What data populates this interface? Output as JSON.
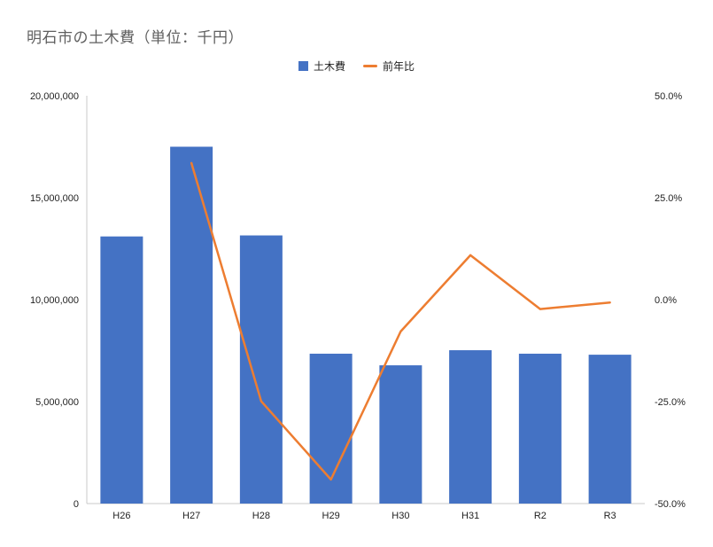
{
  "page": {
    "title": "明石市の土木費（単位：千円）"
  },
  "legend": [
    {
      "label": "土木費",
      "color": "#4472C4"
    },
    {
      "label": "前年比",
      "color": "#ED7D31"
    }
  ],
  "chart_data": {
    "type": "bar+line",
    "title": "明石市の土木費（単位：千円）",
    "categories": [
      "H26",
      "H27",
      "H28",
      "H29",
      "H30",
      "H31",
      "R2",
      "R3"
    ],
    "series": [
      {
        "name": "土木費",
        "type": "bar",
        "axis": "left",
        "color": "#4472C4",
        "values": [
          13100000,
          17500000,
          13150000,
          7350000,
          6780000,
          7520000,
          7350000,
          7300000
        ]
      },
      {
        "name": "前年比",
        "type": "line",
        "axis": "right",
        "color": "#ED7D31",
        "values": [
          null,
          33.5,
          -24.9,
          -44.1,
          -7.8,
          10.9,
          -2.3,
          -0.7
        ]
      }
    ],
    "left_axis": {
      "min": 0,
      "max": 20000000,
      "ticks": [
        0,
        5000000,
        10000000,
        15000000,
        20000000
      ],
      "tick_labels": [
        "0",
        "5,000,000",
        "10,000,000",
        "15,000,000",
        "20,000,000"
      ]
    },
    "right_axis": {
      "min": -50,
      "max": 50,
      "ticks": [
        -50,
        -25,
        0,
        25,
        50
      ],
      "tick_labels": [
        "-50.0%",
        "-25.0%",
        "0.0%",
        "25.0%",
        "50.0%"
      ]
    },
    "legend_position": "top",
    "grid": false
  }
}
